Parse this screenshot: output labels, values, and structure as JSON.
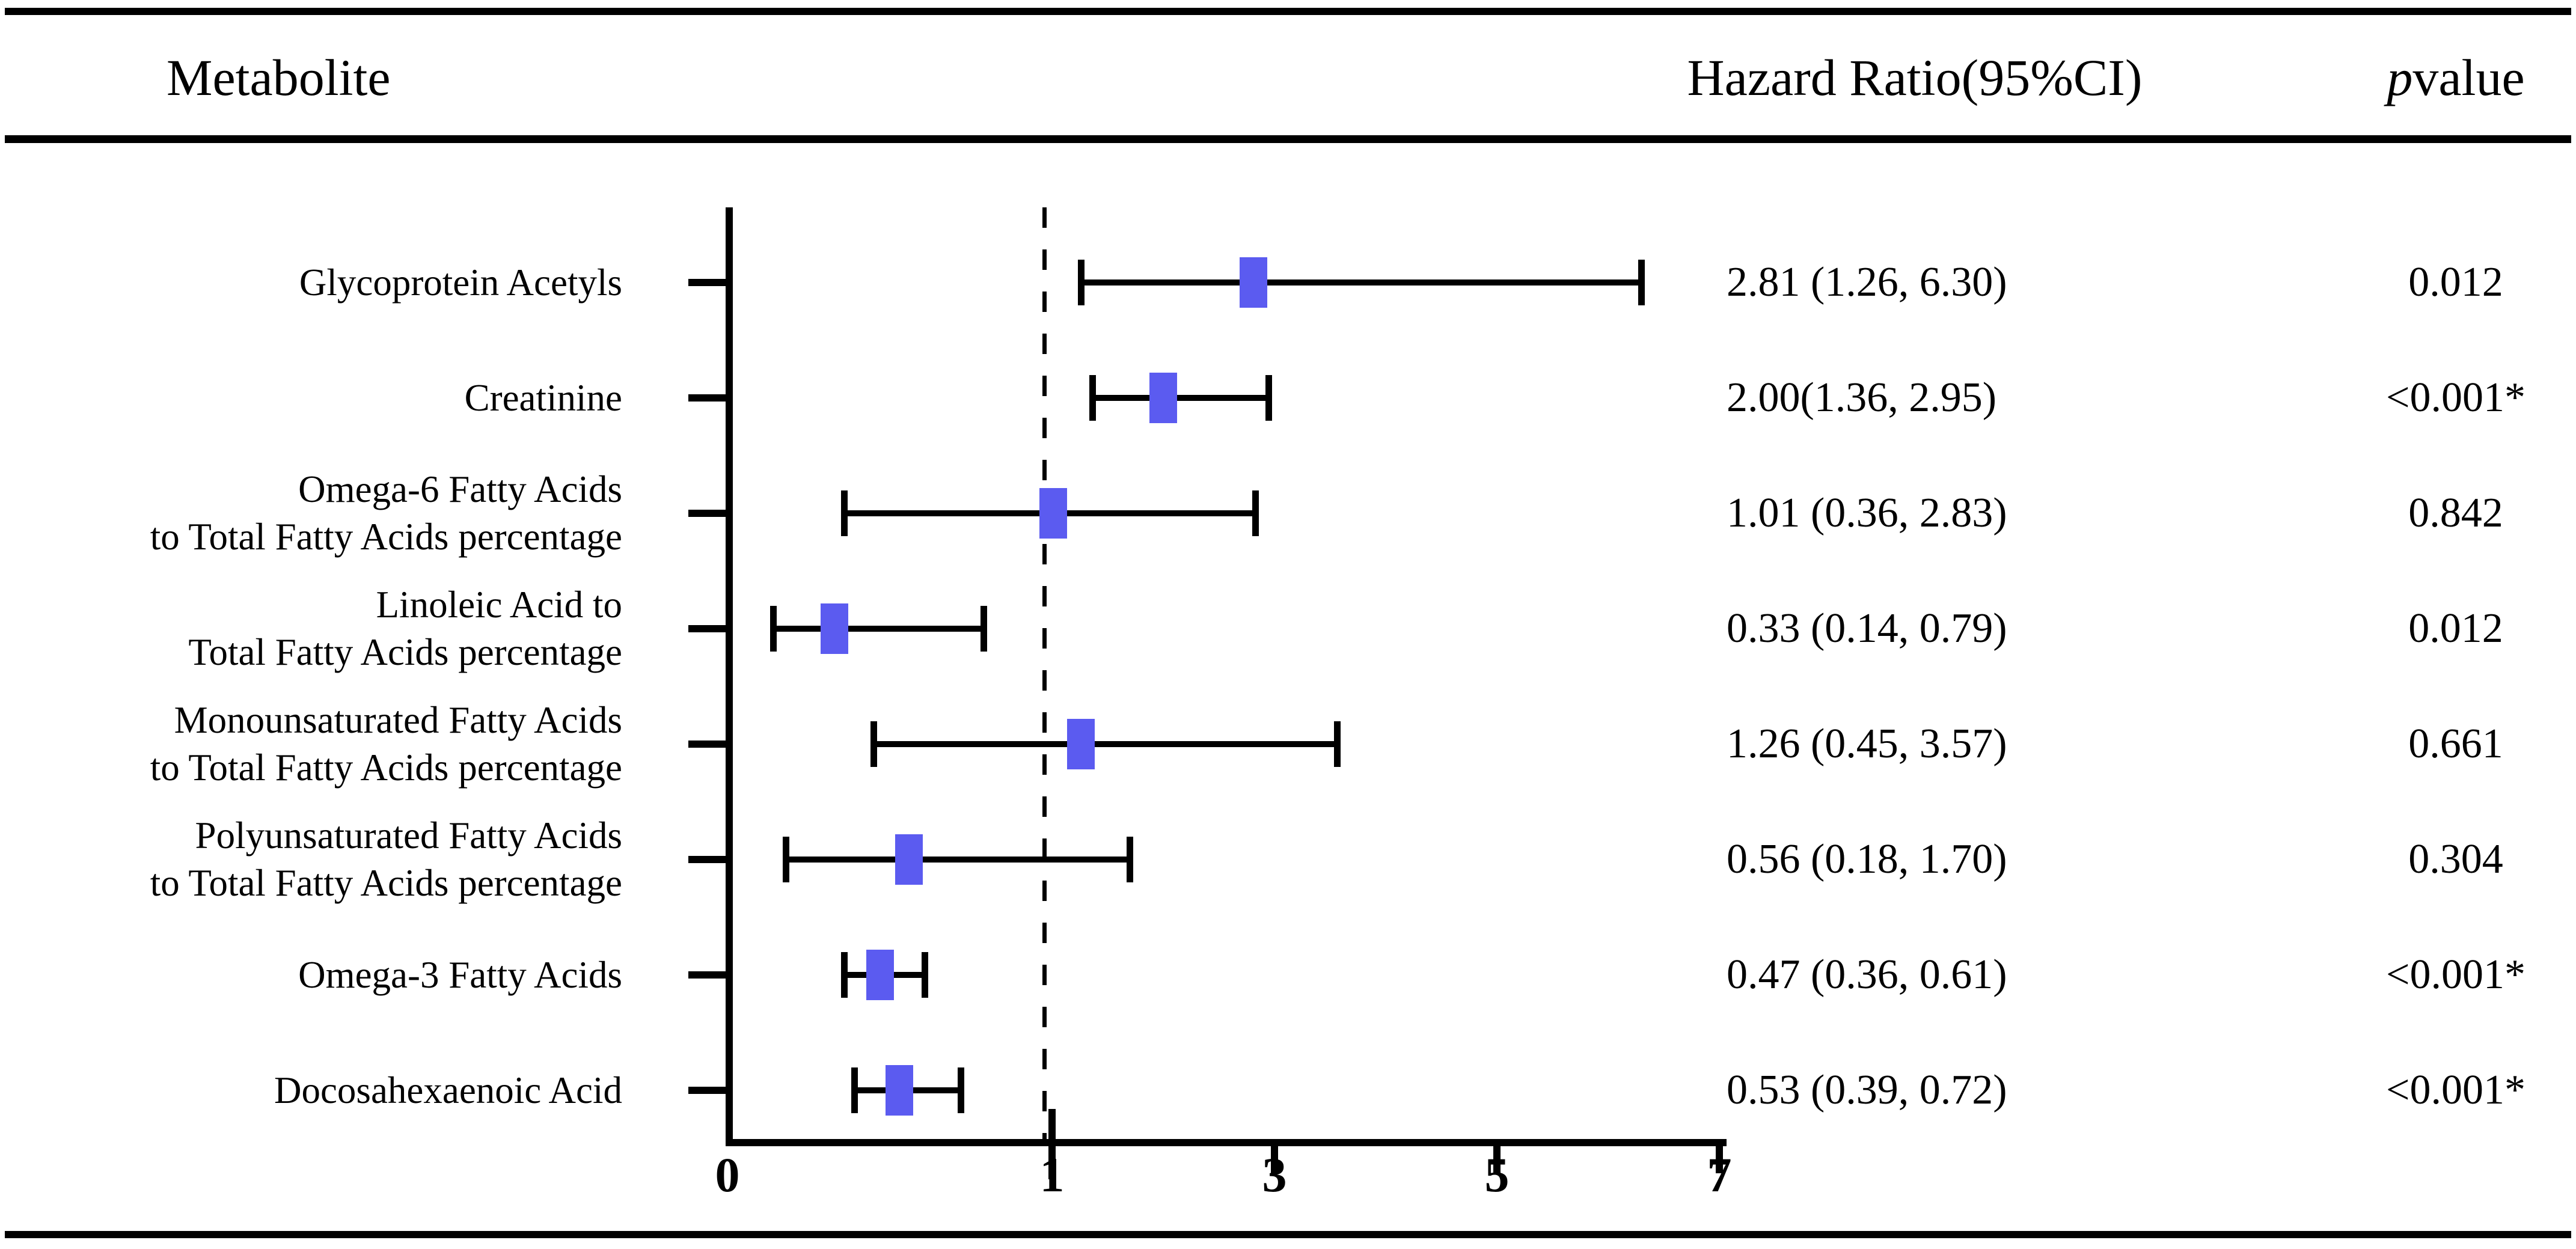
{
  "header": {
    "metabolite": "Metabolite",
    "hazard_ratio": "Hazard Ratio(95%CI)",
    "p_italic": "p",
    "p_rest": " value"
  },
  "chart_data": {
    "type": "forest",
    "title": "",
    "xlabel": "",
    "ylabel": "",
    "x_axis": {
      "ticks": [
        0,
        1,
        3,
        5,
        7
      ],
      "segmented": true,
      "segment_break": 1,
      "reference_line": 1
    },
    "marker_color": "#5b5bf0",
    "error_bar_color": "#000000",
    "rows": [
      {
        "label_lines": [
          "Glycoprotein Acetyls"
        ],
        "hr": 2.81,
        "ci_low": 1.26,
        "ci_high": 6.3,
        "hr_ci_text": "2.81 (1.26, 6.30)",
        "p_text": "0.012"
      },
      {
        "label_lines": [
          "Creatinine"
        ],
        "hr": 2.0,
        "ci_low": 1.36,
        "ci_high": 2.95,
        "hr_ci_text": "2.00(1.36, 2.95)",
        "p_text": "<0.001*"
      },
      {
        "label_lines": [
          "Omega-6 Fatty Acids",
          "to Total Fatty Acids percentage"
        ],
        "hr": 1.01,
        "ci_low": 0.36,
        "ci_high": 2.83,
        "hr_ci_text": "1.01 (0.36, 2.83)",
        "p_text": "0.842"
      },
      {
        "label_lines": [
          "Linoleic Acid to",
          "Total Fatty Acids percentage"
        ],
        "hr": 0.33,
        "ci_low": 0.14,
        "ci_high": 0.79,
        "hr_ci_text": "0.33 (0.14, 0.79)",
        "p_text": "0.012"
      },
      {
        "label_lines": [
          "Monounsaturated Fatty Acids",
          "to Total Fatty Acids percentage"
        ],
        "hr": 1.26,
        "ci_low": 0.45,
        "ci_high": 3.57,
        "hr_ci_text": "1.26 (0.45, 3.57)",
        "p_text": "0.661"
      },
      {
        "label_lines": [
          "Polyunsaturated Fatty Acids",
          "to Total Fatty Acids percentage"
        ],
        "hr": 0.56,
        "ci_low": 0.18,
        "ci_high": 1.7,
        "hr_ci_text": "0.56 (0.18, 1.70)",
        "p_text": "0.304"
      },
      {
        "label_lines": [
          "Omega-3 Fatty Acids"
        ],
        "hr": 0.47,
        "ci_low": 0.36,
        "ci_high": 0.61,
        "hr_ci_text": "0.47 (0.36, 0.61)",
        "p_text": "<0.001*"
      },
      {
        "label_lines": [
          "Docosahexaenoic Acid"
        ],
        "hr": 0.53,
        "ci_low": 0.39,
        "ci_high": 0.72,
        "hr_ci_text": "0.53 (0.39, 0.72)",
        "p_text": "<0.001*"
      }
    ]
  }
}
